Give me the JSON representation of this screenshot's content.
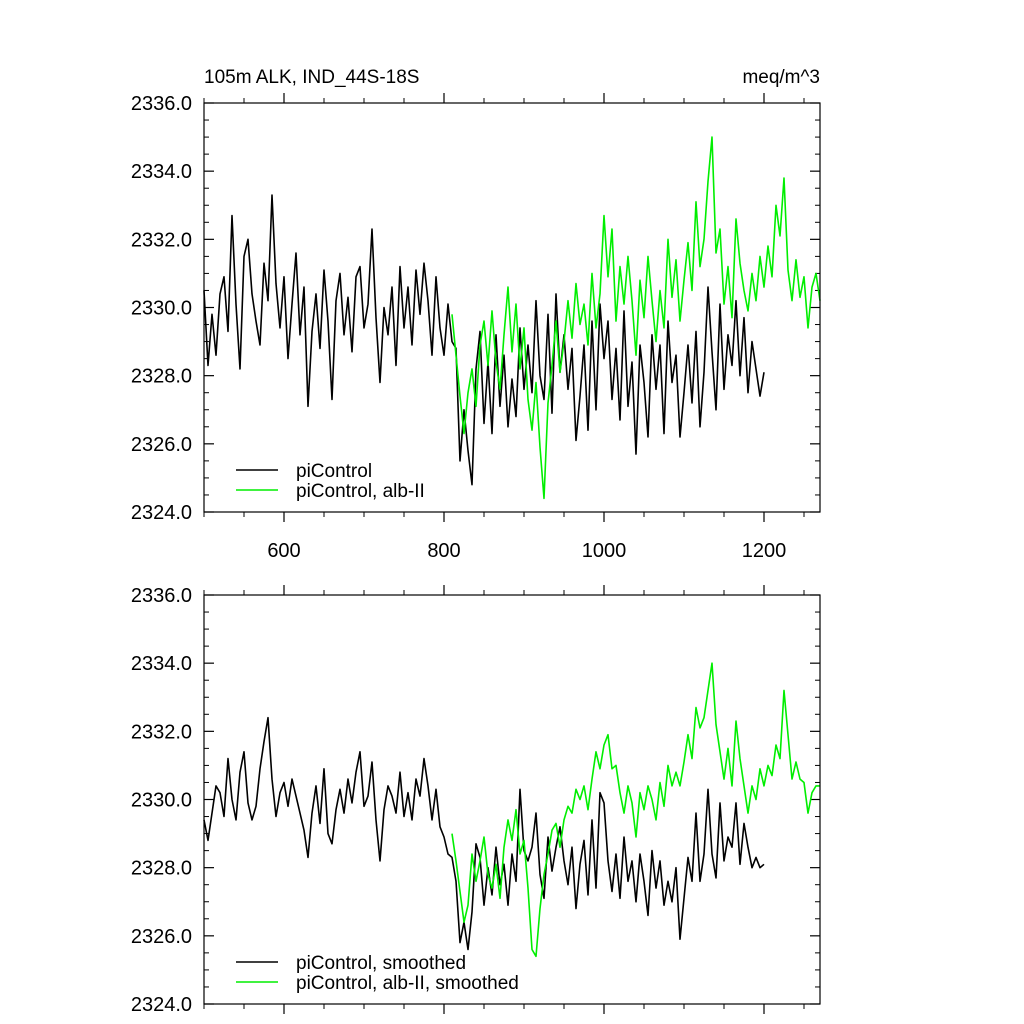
{
  "chart_data": [
    {
      "type": "line",
      "title": "105m ALK, IND_44S-18S",
      "units": "meq/m^3",
      "xlabel": "",
      "ylabel": "",
      "xlim": [
        500,
        1270
      ],
      "ylim": [
        2324.0,
        2336.0
      ],
      "x_ticks": [
        600,
        800,
        1000,
        1200
      ],
      "x_tick_labels": [
        "600",
        "800",
        "1000",
        "1200"
      ],
      "y_ticks": [
        2324,
        2326,
        2328,
        2330,
        2332,
        2334,
        2336
      ],
      "y_tick_labels": [
        "2324.0",
        "2326.0",
        "2328.0",
        "2330.0",
        "2332.0",
        "2334.0",
        "2336.0"
      ],
      "legend_position": "bottom-left",
      "series": [
        {
          "name": "piControl",
          "color": "#000000",
          "x": [
            500,
            505,
            510,
            515,
            520,
            525,
            530,
            535,
            540,
            545,
            550,
            555,
            560,
            565,
            570,
            575,
            580,
            585,
            590,
            595,
            600,
            605,
            610,
            615,
            620,
            625,
            630,
            635,
            640,
            645,
            650,
            655,
            660,
            665,
            670,
            675,
            680,
            685,
            690,
            695,
            700,
            705,
            710,
            715,
            720,
            725,
            730,
            735,
            740,
            745,
            750,
            755,
            760,
            765,
            770,
            775,
            780,
            785,
            790,
            795,
            800,
            805,
            810,
            815,
            820,
            825,
            830,
            835,
            840,
            845,
            850,
            855,
            860,
            865,
            870,
            875,
            880,
            885,
            890,
            895,
            900,
            905,
            910,
            915,
            920,
            925,
            930,
            935,
            940,
            945,
            950,
            955,
            960,
            965,
            970,
            975,
            980,
            985,
            990,
            995,
            1000,
            1005,
            1010,
            1015,
            1020,
            1025,
            1030,
            1035,
            1040,
            1045,
            1050,
            1055,
            1060,
            1065,
            1070,
            1075,
            1080,
            1085,
            1090,
            1095,
            1100,
            1105,
            1110,
            1115,
            1120,
            1125,
            1130,
            1135,
            1140,
            1145,
            1150,
            1155,
            1160,
            1165,
            1170,
            1175,
            1180,
            1185,
            1190,
            1195,
            1200
          ],
          "values": [
            2330.5,
            2328.3,
            2329.8,
            2328.6,
            2330.4,
            2330.9,
            2329.3,
            2332.7,
            2330.1,
            2328.2,
            2331.5,
            2332.0,
            2330.4,
            2329.6,
            2328.9,
            2331.3,
            2330.2,
            2333.3,
            2330.7,
            2329.4,
            2330.9,
            2328.5,
            2330.1,
            2331.6,
            2329.2,
            2330.6,
            2327.1,
            2329.3,
            2330.4,
            2328.8,
            2331.1,
            2329.6,
            2327.3,
            2330.2,
            2331.0,
            2329.2,
            2330.3,
            2328.7,
            2330.9,
            2331.2,
            2329.4,
            2330.1,
            2332.3,
            2329.7,
            2327.8,
            2330.0,
            2329.2,
            2330.6,
            2328.3,
            2331.2,
            2329.4,
            2330.6,
            2328.9,
            2331.1,
            2329.8,
            2331.3,
            2330.2,
            2328.6,
            2330.9,
            2329.4,
            2328.6,
            2330.1,
            2329.0,
            2328.8,
            2325.5,
            2327.0,
            2325.8,
            2324.8,
            2328.2,
            2329.3,
            2326.6,
            2328.4,
            2326.3,
            2329.2,
            2327.1,
            2328.6,
            2326.5,
            2327.9,
            2326.8,
            2329.4,
            2327.6,
            2328.9,
            2327.5,
            2330.2,
            2328.0,
            2327.3,
            2329.8,
            2326.9,
            2330.4,
            2328.1,
            2329.2,
            2327.6,
            2328.8,
            2326.1,
            2327.4,
            2328.9,
            2326.4,
            2329.6,
            2327.0,
            2330.1,
            2328.5,
            2329.6,
            2327.3,
            2328.8,
            2326.7,
            2329.9,
            2327.1,
            2328.4,
            2325.7,
            2328.9,
            2327.8,
            2326.2,
            2329.2,
            2327.6,
            2328.9,
            2326.3,
            2329.6,
            2327.8,
            2328.6,
            2326.2,
            2327.5,
            2328.9,
            2327.2,
            2329.3,
            2326.5,
            2328.1,
            2330.6,
            2328.7,
            2327.0,
            2330.1,
            2327.6,
            2329.2,
            2328.3,
            2330.2,
            2328.0,
            2329.7,
            2327.5,
            2329.0,
            2328.2,
            2327.4,
            2328.1
          ]
        },
        {
          "name": "piControl, alb-II",
          "color": "#00ee00",
          "x": [
            810,
            815,
            820,
            825,
            830,
            835,
            840,
            845,
            850,
            855,
            860,
            865,
            870,
            875,
            880,
            885,
            890,
            895,
            900,
            905,
            910,
            915,
            920,
            925,
            930,
            935,
            940,
            945,
            950,
            955,
            960,
            965,
            970,
            975,
            980,
            985,
            990,
            995,
            1000,
            1005,
            1010,
            1015,
            1020,
            1025,
            1030,
            1035,
            1040,
            1045,
            1050,
            1055,
            1060,
            1065,
            1070,
            1075,
            1080,
            1085,
            1090,
            1095,
            1100,
            1105,
            1110,
            1115,
            1120,
            1125,
            1130,
            1135,
            1140,
            1145,
            1150,
            1155,
            1160,
            1165,
            1170,
            1175,
            1180,
            1185,
            1190,
            1195,
            1200,
            1205,
            1210,
            1215,
            1220,
            1225,
            1230,
            1235,
            1240,
            1245,
            1250,
            1255,
            1260,
            1265,
            1270
          ],
          "values": [
            2329.8,
            2328.6,
            2327.4,
            2326.3,
            2327.5,
            2328.2,
            2327.1,
            2328.9,
            2329.6,
            2328.3,
            2329.9,
            2328.4,
            2327.6,
            2329.2,
            2330.6,
            2328.7,
            2330.1,
            2328.2,
            2329.4,
            2327.3,
            2326.4,
            2327.8,
            2325.9,
            2324.4,
            2327.2,
            2328.3,
            2329.6,
            2328.1,
            2329.0,
            2330.2,
            2329.1,
            2330.7,
            2329.5,
            2330.1,
            2328.9,
            2331.0,
            2329.4,
            2330.4,
            2332.7,
            2330.9,
            2332.3,
            2329.6,
            2331.2,
            2330.1,
            2331.5,
            2330.2,
            2328.6,
            2330.8,
            2329.7,
            2331.5,
            2330.2,
            2329.0,
            2330.5,
            2329.4,
            2332.0,
            2330.3,
            2331.4,
            2329.6,
            2330.8,
            2331.9,
            2330.5,
            2333.1,
            2331.2,
            2332.0,
            2333.7,
            2335.0,
            2331.6,
            2332.3,
            2330.1,
            2331.2,
            2329.7,
            2332.6,
            2331.3,
            2330.5,
            2329.9,
            2331.0,
            2330.2,
            2331.5,
            2330.6,
            2331.8,
            2330.9,
            2333.0,
            2332.1,
            2333.8,
            2331.1,
            2330.2,
            2331.4,
            2330.3,
            2330.9,
            2329.4,
            2330.6,
            2331.0,
            2330.2
          ]
        }
      ]
    },
    {
      "type": "line",
      "title": "",
      "xlabel": "",
      "ylabel": "",
      "xlim": [
        500,
        1270
      ],
      "ylim": [
        2324.0,
        2336.0
      ],
      "x_ticks": [
        600,
        800,
        1000,
        1200
      ],
      "y_ticks": [
        2324,
        2326,
        2328,
        2330,
        2332,
        2334,
        2336
      ],
      "y_tick_labels": [
        "2324.0",
        "2326.0",
        "2328.0",
        "2330.0",
        "2332.0",
        "2334.0",
        "2336.0"
      ],
      "legend_position": "bottom-left",
      "series": [
        {
          "name": "piControl, smoothed",
          "color": "#000000",
          "x": [
            500,
            505,
            510,
            515,
            520,
            525,
            530,
            535,
            540,
            545,
            550,
            555,
            560,
            565,
            570,
            575,
            580,
            585,
            590,
            595,
            600,
            605,
            610,
            615,
            620,
            625,
            630,
            635,
            640,
            645,
            650,
            655,
            660,
            665,
            670,
            675,
            680,
            685,
            690,
            695,
            700,
            705,
            710,
            715,
            720,
            725,
            730,
            735,
            740,
            745,
            750,
            755,
            760,
            765,
            770,
            775,
            780,
            785,
            790,
            795,
            800,
            805,
            810,
            815,
            820,
            825,
            830,
            835,
            840,
            845,
            850,
            855,
            860,
            865,
            870,
            875,
            880,
            885,
            890,
            895,
            900,
            905,
            910,
            915,
            920,
            925,
            930,
            935,
            940,
            945,
            950,
            955,
            960,
            965,
            970,
            975,
            980,
            985,
            990,
            995,
            1000,
            1005,
            1010,
            1015,
            1020,
            1025,
            1030,
            1035,
            1040,
            1045,
            1050,
            1055,
            1060,
            1065,
            1070,
            1075,
            1080,
            1085,
            1090,
            1095,
            1100,
            1105,
            1110,
            1115,
            1120,
            1125,
            1130,
            1135,
            1140,
            1145,
            1150,
            1155,
            1160,
            1165,
            1170,
            1175,
            1180,
            1185,
            1190,
            1195,
            1200
          ],
          "values": [
            2329.4,
            2328.8,
            2329.6,
            2330.4,
            2330.2,
            2329.5,
            2331.2,
            2330.0,
            2329.4,
            2330.8,
            2331.4,
            2329.9,
            2329.4,
            2329.8,
            2330.9,
            2331.7,
            2332.4,
            2330.6,
            2329.5,
            2330.2,
            2330.5,
            2329.8,
            2330.6,
            2330.1,
            2329.6,
            2329.1,
            2328.3,
            2329.6,
            2330.4,
            2329.3,
            2330.9,
            2329.0,
            2328.7,
            2329.7,
            2330.3,
            2329.6,
            2330.6,
            2329.9,
            2330.8,
            2331.4,
            2329.8,
            2330.1,
            2331.1,
            2329.4,
            2328.2,
            2329.7,
            2330.4,
            2330.1,
            2329.6,
            2330.8,
            2329.5,
            2330.2,
            2329.4,
            2330.6,
            2330.1,
            2331.2,
            2330.4,
            2329.4,
            2330.3,
            2329.2,
            2328.9,
            2328.4,
            2328.3,
            2327.6,
            2325.8,
            2326.4,
            2325.6,
            2326.7,
            2328.7,
            2328.3,
            2326.9,
            2328.0,
            2327.2,
            2328.6,
            2327.5,
            2328.1,
            2326.9,
            2328.4,
            2327.6,
            2330.3,
            2328.5,
            2328.2,
            2328.6,
            2329.6,
            2327.8,
            2327.1,
            2328.9,
            2327.9,
            2328.6,
            2329.2,
            2328.2,
            2327.5,
            2328.6,
            2326.8,
            2328.1,
            2328.8,
            2327.2,
            2329.4,
            2327.4,
            2330.2,
            2329.9,
            2328.2,
            2327.3,
            2328.4,
            2327.1,
            2328.9,
            2327.6,
            2328.2,
            2327.0,
            2328.4,
            2327.6,
            2326.6,
            2328.5,
            2327.4,
            2328.2,
            2326.9,
            2327.6,
            2327.0,
            2328.0,
            2325.9,
            2327.1,
            2328.3,
            2327.6,
            2329.6,
            2327.6,
            2328.4,
            2330.3,
            2328.4,
            2327.7,
            2329.9,
            2328.2,
            2328.9,
            2328.6,
            2329.9,
            2328.1,
            2329.3,
            2328.6,
            2328.0,
            2328.3,
            2328.0,
            2328.1
          ]
        },
        {
          "name": "piControl, alb-II, smoothed",
          "color": "#00ee00",
          "x": [
            810,
            815,
            820,
            825,
            830,
            835,
            840,
            845,
            850,
            855,
            860,
            865,
            870,
            875,
            880,
            885,
            890,
            895,
            900,
            905,
            910,
            915,
            920,
            925,
            930,
            935,
            940,
            945,
            950,
            955,
            960,
            965,
            970,
            975,
            980,
            985,
            990,
            995,
            1000,
            1005,
            1010,
            1015,
            1020,
            1025,
            1030,
            1035,
            1040,
            1045,
            1050,
            1055,
            1060,
            1065,
            1070,
            1075,
            1080,
            1085,
            1090,
            1095,
            1100,
            1105,
            1110,
            1115,
            1120,
            1125,
            1130,
            1135,
            1140,
            1145,
            1150,
            1155,
            1160,
            1165,
            1170,
            1175,
            1180,
            1185,
            1190,
            1195,
            1200,
            1205,
            1210,
            1215,
            1220,
            1225,
            1230,
            1235,
            1240,
            1245,
            1250,
            1255,
            1260,
            1265,
            1270
          ],
          "values": [
            2329.0,
            2328.2,
            2327.3,
            2326.4,
            2326.9,
            2328.4,
            2327.6,
            2328.2,
            2328.9,
            2327.8,
            2327.4,
            2328.1,
            2327.1,
            2328.6,
            2329.4,
            2328.8,
            2329.7,
            2328.4,
            2328.8,
            2327.4,
            2325.6,
            2325.4,
            2326.8,
            2327.8,
            2328.4,
            2329.1,
            2329.3,
            2328.6,
            2329.4,
            2329.8,
            2329.6,
            2330.3,
            2330.0,
            2330.4,
            2329.7,
            2330.6,
            2331.4,
            2330.9,
            2331.6,
            2331.9,
            2330.9,
            2331.0,
            2330.2,
            2329.6,
            2330.4,
            2329.9,
            2328.9,
            2330.2,
            2329.7,
            2330.4,
            2330.0,
            2329.4,
            2330.5,
            2329.8,
            2331.0,
            2330.4,
            2330.8,
            2330.4,
            2331.1,
            2331.9,
            2331.2,
            2332.7,
            2332.1,
            2332.4,
            2333.2,
            2334.0,
            2332.2,
            2331.4,
            2330.6,
            2331.5,
            2330.4,
            2332.3,
            2331.2,
            2330.4,
            2329.6,
            2330.4,
            2330.0,
            2330.9,
            2330.4,
            2331.0,
            2330.7,
            2331.6,
            2331.2,
            2333.2,
            2331.9,
            2330.6,
            2331.1,
            2330.6,
            2330.5,
            2329.6,
            2330.2,
            2330.4,
            2330.4
          ]
        }
      ]
    }
  ]
}
